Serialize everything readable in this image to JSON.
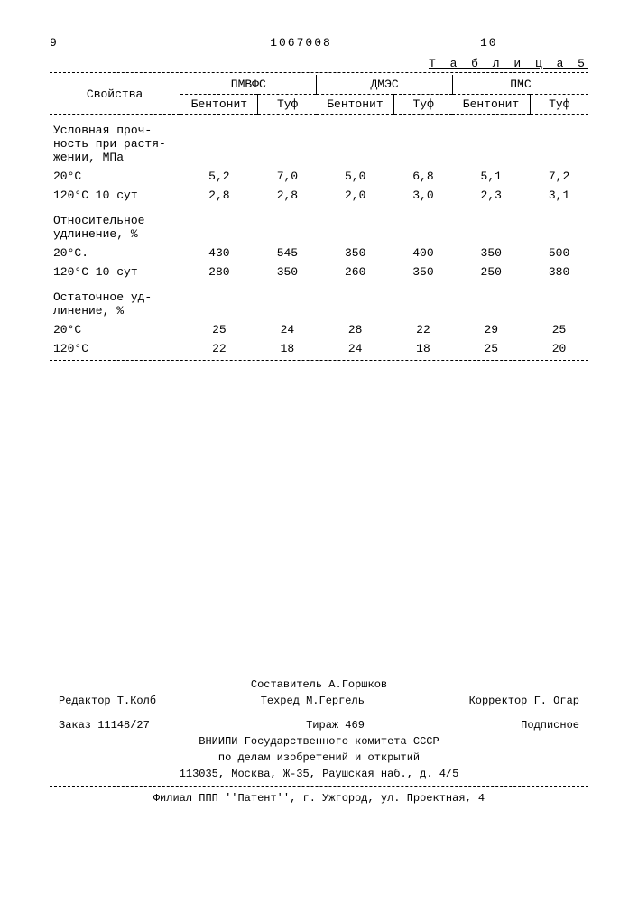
{
  "header": {
    "page_left": "9",
    "doc_number": "1067008",
    "page_right": "10"
  },
  "table": {
    "caption": "Т а б л и ц а  5",
    "col_prop": "Свойства",
    "group1": "ПМВФС",
    "group2": "ДМЭС",
    "group3": "ПМС",
    "sub_bentonit": "Бентонит",
    "sub_tuf": "Туф",
    "sections": [
      {
        "title": "Условная проч-\nность при растя-\nжении, МПа",
        "rows": [
          {
            "label": "20°С",
            "v": [
              "5,2",
              "7,0",
              "5,0",
              "6,8",
              "5,1",
              "7,2"
            ]
          },
          {
            "label": "120°С  10 сут",
            "v": [
              "2,8",
              "2,8",
              "2,0",
              "3,0",
              "2,3",
              "3,1"
            ]
          }
        ]
      },
      {
        "title": "Относительное\nудлинение, %",
        "rows": [
          {
            "label": "20°С.",
            "v": [
              "430",
              "545",
              "350",
              "400",
              "350",
              "500"
            ]
          },
          {
            "label": "120°С  10 сут",
            "v": [
              "280",
              "350",
              "260",
              "350",
              "250",
              "380"
            ]
          }
        ]
      },
      {
        "title": "Остаточное уд-\nлинение, %",
        "rows": [
          {
            "label": "20°С",
            "v": [
              "25",
              "24",
              "28",
              "22",
              "29",
              "25"
            ]
          },
          {
            "label": "120°С",
            "v": [
              "22",
              "18",
              "24",
              "18",
              "25",
              "20"
            ]
          }
        ]
      }
    ]
  },
  "footer": {
    "compiler": "Составитель А.Горшков",
    "editor_label": "Редактор Т.Колб",
    "tehred": "Техред М.Гергель",
    "corrector": "Корректор Г. Огар",
    "order": "Заказ 11148/27",
    "tirazh": "Тираж  469",
    "podpisnoe": "Подписное",
    "org1": "ВНИИПИ Государственного комитета СССР",
    "org2": "по делам изобретений и открытий",
    "address": "113035, Москва, Ж-35, Раушская наб., д. 4/5",
    "filial": "Филиал ППП ''Патент'', г. Ужгород, ул. Проектная, 4"
  }
}
